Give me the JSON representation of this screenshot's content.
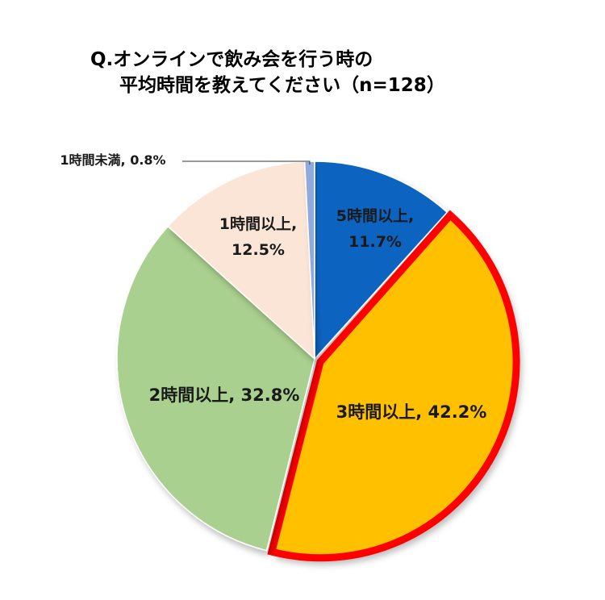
{
  "title_line1": "Q.オンラインで飲み会を行う時の",
  "title_line2": "平均時間を教えてください（n=128）",
  "chart_data": {
    "type": "pie",
    "title": "Q.オンラインで飲み会を行う時の平均時間を教えてください（n=128）",
    "start_angle_deg": 0,
    "direction": "clockwise",
    "highlighted_slice": "3時間以上",
    "highlight_color": "#ff0000",
    "slices": [
      {
        "label": "5時間以上",
        "value": 11.7,
        "display": "11.7%",
        "color": "#0b64c0",
        "text_color": "#1a1a1a"
      },
      {
        "label": "3時間以上",
        "value": 42.2,
        "display": "42.2%",
        "color": "#ffc000",
        "text_color": "#1a1a1a"
      },
      {
        "label": "2時間以上",
        "value": 32.8,
        "display": "32.8%",
        "color": "#a9d08e",
        "text_color": "#1a1a1a"
      },
      {
        "label": "1時間以上",
        "value": 12.5,
        "display": "12.5%",
        "color": "#fbe5d6",
        "text_color": "#1a1a1a"
      },
      {
        "label": "1時間未満",
        "value": 0.8,
        "display": "0.8%",
        "color": "#8faadc",
        "text_color": "#1a1a1a"
      }
    ]
  }
}
